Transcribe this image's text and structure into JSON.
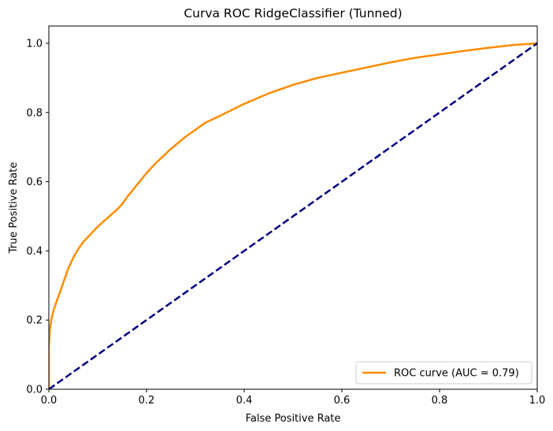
{
  "chart_data": {
    "type": "line",
    "title": "Curva ROC RidgeClassifier (Tunned)",
    "xlabel": "False Positive Rate",
    "ylabel": "True Positive Rate",
    "xlim": [
      0.0,
      1.0
    ],
    "ylim": [
      0.0,
      1.05
    ],
    "xticks": [
      0.0,
      0.2,
      0.4,
      0.6,
      0.8,
      1.0
    ],
    "yticks": [
      0.0,
      0.2,
      0.4,
      0.6,
      0.8,
      1.0
    ],
    "xtick_labels": [
      "0.0",
      "0.2",
      "0.4",
      "0.6",
      "0.8",
      "1.0"
    ],
    "ytick_labels": [
      "0.0",
      "0.2",
      "0.4",
      "0.6",
      "0.8",
      "1.0"
    ],
    "grid": false,
    "legend_position": "lower-right",
    "series": [
      {
        "name": "ROC curve (AUC = 0.79)",
        "color": "#ff8c00",
        "style": "solid",
        "x": [
          0.0,
          0.0,
          0.002,
          0.005,
          0.01,
          0.02,
          0.03,
          0.04,
          0.05,
          0.06,
          0.07,
          0.08,
          0.09,
          0.1,
          0.12,
          0.14,
          0.15,
          0.16,
          0.18,
          0.2,
          0.22,
          0.25,
          0.28,
          0.3,
          0.32,
          0.35,
          0.4,
          0.45,
          0.5,
          0.55,
          0.6,
          0.65,
          0.7,
          0.75,
          0.8,
          0.85,
          0.9,
          0.95,
          1.0
        ],
        "y": [
          0.0,
          0.12,
          0.17,
          0.2,
          0.23,
          0.27,
          0.31,
          0.35,
          0.38,
          0.405,
          0.425,
          0.44,
          0.455,
          0.47,
          0.495,
          0.52,
          0.535,
          0.555,
          0.59,
          0.625,
          0.655,
          0.695,
          0.73,
          0.75,
          0.77,
          0.79,
          0.825,
          0.855,
          0.88,
          0.9,
          0.915,
          0.93,
          0.945,
          0.958,
          0.968,
          0.978,
          0.987,
          0.995,
          1.0
        ]
      },
      {
        "name": "",
        "color": "#000080",
        "style": "dashed",
        "x": [
          0.0,
          1.0
        ],
        "y": [
          0.0,
          1.0
        ]
      }
    ],
    "legend": [
      {
        "label": "ROC curve (AUC = 0.79)",
        "color": "#ff8c00"
      }
    ]
  }
}
